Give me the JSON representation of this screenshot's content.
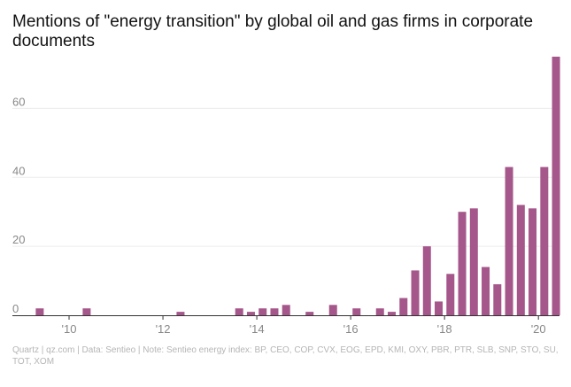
{
  "chart_data": {
    "type": "bar",
    "title": "Mentions of \"energy transition\" by global oil and gas firms in corporate documents",
    "source": "Quartz | qz.com | Data: Sentieo | Note: Sentieo energy index: BP, CEO, COP, CVX, EOG, EPD, KMI, OXY, PBR, PTR, SLB, SNP, STO, SU, TOT, XOM",
    "xlabel": "",
    "ylabel": "",
    "ylim": [
      0,
      75
    ],
    "yticks": [
      0,
      20,
      40,
      60
    ],
    "ytick_labels": [
      "0",
      "20",
      "40",
      "60"
    ],
    "xlim": [
      2009,
      2020.6
    ],
    "xticks": [
      2010,
      2012,
      2014,
      2016,
      2018,
      2020
    ],
    "xtick_labels": [
      "'10",
      "'12",
      "'14",
      "'16",
      "'18",
      "'20"
    ],
    "grid": true,
    "bar_color": "#a5568a",
    "grid_color": "#ececec",
    "x": [
      2009.375,
      2010.375,
      2012.375,
      2013.625,
      2013.875,
      2014.125,
      2014.375,
      2014.625,
      2015.125,
      2015.625,
      2016.125,
      2016.625,
      2016.875,
      2017.125,
      2017.375,
      2017.625,
      2017.875,
      2018.125,
      2018.375,
      2018.625,
      2018.875,
      2019.125,
      2019.375,
      2019.625,
      2019.875,
      2020.125,
      2020.375
    ],
    "values": [
      2,
      2,
      1,
      2,
      1,
      2,
      2,
      3,
      1,
      3,
      2,
      2,
      1,
      5,
      13,
      20,
      4,
      12,
      30,
      31,
      14,
      9,
      43,
      32,
      31,
      43,
      75
    ]
  }
}
